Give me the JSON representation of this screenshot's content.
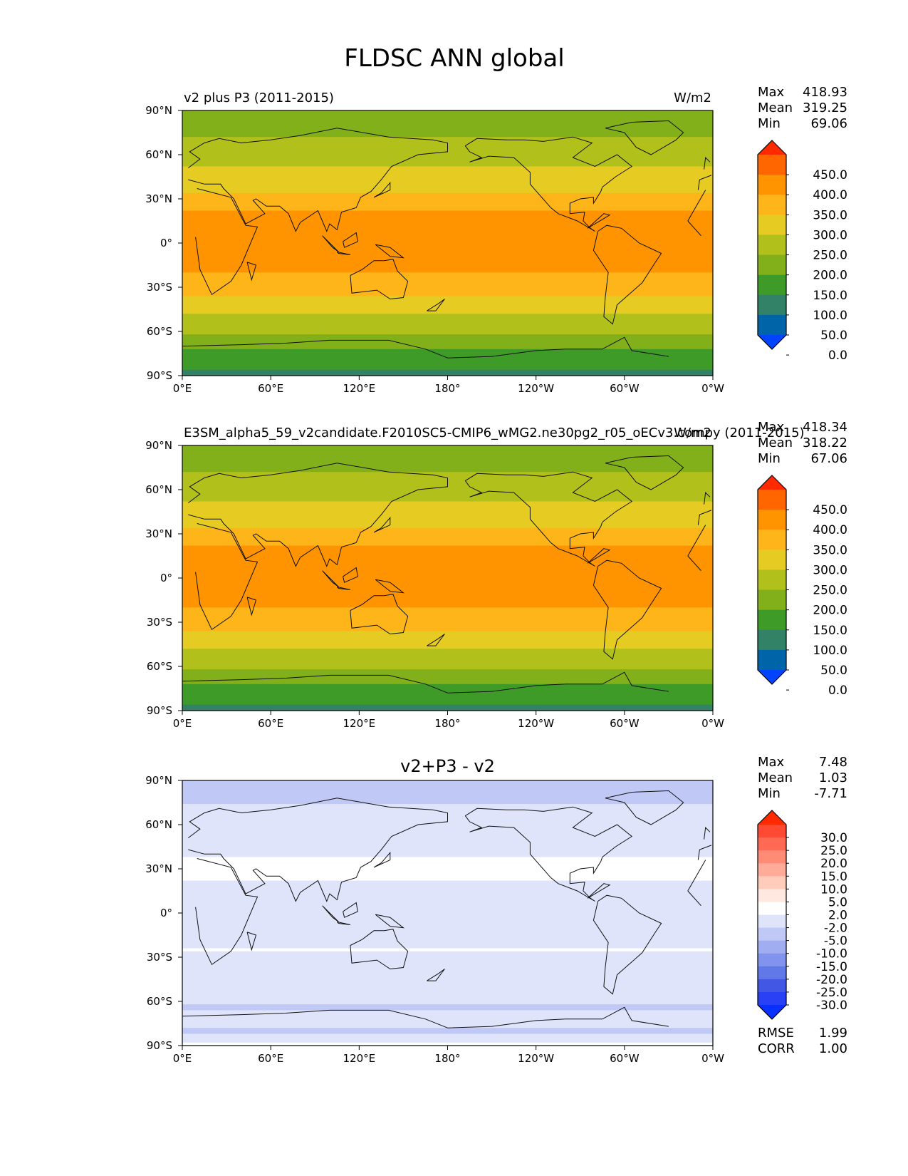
{
  "title": "FLDSC ANN global",
  "chart_data": [
    {
      "type": "heatmap",
      "panel": "test",
      "title_left": "v2 plus P3 (2011-2015)",
      "units": "W/m2",
      "stats": [
        {
          "label": "Max",
          "value": "418.93"
        },
        {
          "label": "Mean",
          "value": "319.25"
        },
        {
          "label": "Min",
          "value": "69.06"
        }
      ],
      "colorbar_levels": [
        "450.0",
        "400.0",
        "350.0",
        "300.0",
        "250.0",
        "200.0",
        "150.0",
        "100.0",
        "50.0",
        "0.0"
      ],
      "colorbar_colors": [
        "#ff2a00",
        "#ff6600",
        "#ff9400",
        "#fdb519",
        "#e6cc22",
        "#b2c01c",
        "#82b01a",
        "#3f9b28",
        "#328268",
        "#0064a8",
        "#0044ff"
      ],
      "colorbar_extend": "both",
      "zonal_profile": {
        "lat": [
          -90,
          -80,
          -72,
          -65,
          -55,
          -45,
          -35,
          -25,
          -15,
          -5,
          5,
          15,
          25,
          35,
          45,
          55,
          65,
          75,
          90
        ],
        "value": [
          90,
          110,
          150,
          185,
          225,
          265,
          305,
          335,
          360,
          380,
          385,
          375,
          340,
          295,
          265,
          245,
          225,
          190,
          170
        ]
      },
      "x_ticks": [
        "0°E",
        "60°E",
        "120°E",
        "180°",
        "120°W",
        "60°W",
        "0°W"
      ],
      "y_ticks": [
        "90°N",
        "60°N",
        "30°N",
        "0°",
        "30°S",
        "60°S",
        "90°S"
      ],
      "lon_range": [
        0,
        360
      ],
      "lat_range": [
        -90,
        90
      ]
    },
    {
      "type": "heatmap",
      "panel": "reference",
      "title_left": "E3SM_alpha5_59_v2candidate.F2010SC5-CMIP6_wMG2.ne30pg2_r05_oECv3.compy (2011-2015)",
      "units": "W/m2",
      "stats": [
        {
          "label": "Max",
          "value": "418.34"
        },
        {
          "label": "Mean",
          "value": "318.22"
        },
        {
          "label": "Min",
          "value": "67.06"
        }
      ],
      "colorbar_levels": [
        "450.0",
        "400.0",
        "350.0",
        "300.0",
        "250.0",
        "200.0",
        "150.0",
        "100.0",
        "50.0",
        "0.0"
      ],
      "colorbar_colors": [
        "#ff2a00",
        "#ff6600",
        "#ff9400",
        "#fdb519",
        "#e6cc22",
        "#b2c01c",
        "#82b01a",
        "#3f9b28",
        "#328268",
        "#0064a8",
        "#0044ff"
      ],
      "colorbar_extend": "both",
      "zonal_profile": {
        "lat": [
          -90,
          -80,
          -72,
          -65,
          -55,
          -45,
          -35,
          -25,
          -15,
          -5,
          5,
          15,
          25,
          35,
          45,
          55,
          65,
          75,
          90
        ],
        "value": [
          90,
          110,
          150,
          185,
          225,
          265,
          305,
          335,
          360,
          380,
          385,
          375,
          340,
          295,
          265,
          245,
          225,
          190,
          170
        ]
      },
      "x_ticks": [
        "0°E",
        "60°E",
        "120°E",
        "180°",
        "120°W",
        "60°W",
        "0°W"
      ],
      "y_ticks": [
        "90°N",
        "60°N",
        "30°N",
        "0°",
        "30°S",
        "60°S",
        "90°S"
      ],
      "lon_range": [
        0,
        360
      ],
      "lat_range": [
        -90,
        90
      ]
    },
    {
      "type": "heatmap",
      "panel": "difference",
      "title_center": "v2+P3 - v2",
      "stats": [
        {
          "label": "Max",
          "value": "7.48"
        },
        {
          "label": "Mean",
          "value": "1.03"
        },
        {
          "label": "Min",
          "value": "-7.71"
        }
      ],
      "colorbar_levels": [
        "30.0",
        "25.0",
        "20.0",
        "15.0",
        "10.0",
        "5.0",
        "2.0",
        "-2.0",
        "-5.0",
        "-10.0",
        "-15.0",
        "-20.0",
        "-25.0",
        "-30.0"
      ],
      "colorbar_colors": [
        "#ff2a00",
        "#ff4a33",
        "#ff6a55",
        "#ff8b77",
        "#ffab99",
        "#ffccbb",
        "#ffe8e0",
        "#ffffff",
        "#dfe4fa",
        "#c0c9f6",
        "#a0aef1",
        "#8193ed",
        "#6178e8",
        "#4258e4",
        "#2a40f5",
        "#0a30ff"
      ],
      "colorbar_extend": "both",
      "zonal_profile": {
        "lat": [
          -90,
          -80,
          -72,
          -65,
          -55,
          -45,
          -35,
          -25,
          -15,
          -5,
          5,
          15,
          25,
          35,
          45,
          55,
          65,
          75,
          90
        ],
        "value": [
          3,
          -3,
          2,
          -3,
          0,
          0.5,
          0,
          2,
          1,
          0.5,
          0,
          1,
          2.5,
          2.5,
          0.5,
          1.5,
          0,
          -2.5,
          -3
        ]
      },
      "footer_stats": [
        {
          "label": "RMSE",
          "value": "1.99"
        },
        {
          "label": "CORR",
          "value": "1.00"
        }
      ],
      "x_ticks": [
        "0°E",
        "60°E",
        "120°E",
        "180°",
        "120°W",
        "60°W",
        "0°W"
      ],
      "y_ticks": [
        "90°N",
        "60°N",
        "30°N",
        "0°",
        "30°S",
        "60°S",
        "90°S"
      ],
      "lon_range": [
        0,
        360
      ],
      "lat_range": [
        -90,
        90
      ]
    }
  ]
}
